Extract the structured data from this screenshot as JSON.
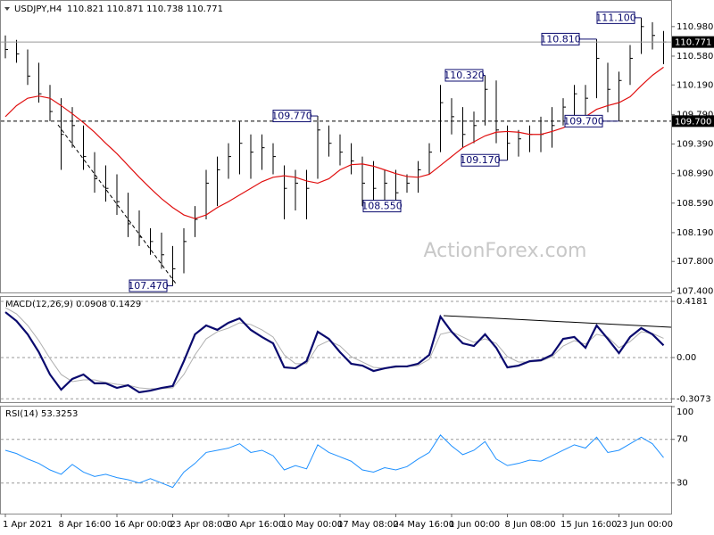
{
  "chart_data": [
    {
      "type": "hlc",
      "title": "USDJPY,H4",
      "subtitle": "110.821 110.871 110.738 110.771",
      "watermark": "ActionForex.com",
      "categories": [
        "1 Apr 2021",
        null,
        null,
        null,
        null,
        "8 Apr 16:00",
        null,
        null,
        null,
        null,
        "16 Apr 00:00",
        null,
        null,
        null,
        null,
        "23 Apr 08:00",
        null,
        null,
        null,
        null,
        "30 Apr 16:00",
        null,
        null,
        null,
        null,
        "10 May 00:00",
        null,
        null,
        null,
        null,
        "17 May 08:00",
        null,
        null,
        null,
        null,
        "24 May 16:00",
        null,
        null,
        null,
        null,
        "1 Jun 00:00",
        null,
        null,
        null,
        null,
        "8 Jun 08:00",
        null,
        null,
        null,
        null,
        "15 Jun 16:00",
        null,
        null,
        null,
        null,
        "23 Jun 00:00",
        null,
        null,
        null,
        null
      ],
      "high": [
        110.86,
        110.8,
        110.67,
        110.49,
        110.19,
        110.01,
        109.89,
        109.64,
        109.28,
        109.1,
        108.98,
        108.73,
        108.49,
        108.25,
        108.19,
        108.01,
        108.25,
        108.55,
        109.04,
        109.22,
        109.4,
        109.7,
        109.52,
        109.52,
        109.4,
        109.1,
        109.04,
        109.04,
        109.77,
        109.64,
        109.52,
        109.4,
        109.22,
        109.16,
        109.04,
        109.04,
        108.98,
        109.16,
        109.4,
        110.19,
        110.01,
        109.89,
        109.83,
        110.32,
        110.25,
        109.64,
        109.58,
        109.64,
        109.76,
        109.89,
        110.01,
        110.19,
        110.19,
        110.81,
        110.49,
        110.37,
        110.73,
        111.1,
        111.04,
        110.92
      ],
      "low": [
        110.55,
        110.49,
        110.19,
        109.95,
        109.7,
        109.04,
        109.34,
        109.04,
        108.73,
        108.61,
        108.43,
        108.13,
        108.01,
        107.89,
        107.7,
        107.47,
        107.64,
        108.13,
        108.37,
        108.55,
        108.92,
        108.98,
        108.92,
        109.04,
        108.98,
        108.37,
        108.49,
        108.37,
        108.92,
        109.22,
        109.1,
        108.98,
        108.55,
        108.61,
        108.61,
        108.61,
        108.73,
        108.73,
        108.98,
        109.28,
        109.52,
        109.34,
        109.4,
        109.64,
        109.4,
        109.17,
        109.22,
        109.28,
        109.28,
        109.34,
        109.64,
        109.76,
        109.76,
        110.01,
        109.82,
        109.7,
        110.19,
        110.61,
        110.67,
        110.47
      ],
      "close": [
        110.67,
        110.61,
        110.31,
        110.07,
        109.83,
        109.52,
        109.64,
        109.22,
        108.92,
        108.79,
        108.61,
        108.31,
        108.13,
        108.07,
        107.89,
        107.7,
        108.07,
        108.37,
        108.86,
        109.04,
        109.22,
        109.4,
        109.28,
        109.34,
        109.22,
        108.79,
        108.86,
        108.79,
        109.58,
        109.4,
        109.28,
        109.16,
        108.86,
        108.79,
        108.86,
        108.73,
        108.86,
        109.04,
        109.28,
        109.95,
        109.76,
        109.52,
        109.64,
        110.13,
        109.58,
        109.4,
        109.46,
        109.52,
        109.52,
        109.64,
        109.89,
        110.07,
        110.01,
        110.55,
        110.13,
        110.25,
        110.55,
        110.98,
        110.86,
        110.771
      ],
      "color": "#000000",
      "ma": {
        "color": "#e01010",
        "values": [
          109.76,
          109.91,
          110.01,
          110.04,
          110.01,
          109.91,
          109.8,
          109.68,
          109.55,
          109.4,
          109.26,
          109.1,
          108.94,
          108.79,
          108.65,
          108.53,
          108.43,
          108.38,
          108.43,
          108.53,
          108.61,
          108.7,
          108.79,
          108.88,
          108.94,
          108.96,
          108.94,
          108.89,
          108.86,
          108.92,
          109.04,
          109.11,
          109.12,
          109.09,
          109.04,
          108.99,
          108.95,
          108.94,
          108.98,
          109.1,
          109.22,
          109.34,
          109.42,
          109.5,
          109.55,
          109.56,
          109.55,
          109.52,
          109.52,
          109.56,
          109.61,
          109.68,
          109.76,
          109.86,
          109.91,
          109.95,
          110.03,
          110.18,
          110.32,
          110.43
        ]
      },
      "current_price": {
        "value": 110.771,
        "label": "110.771"
      },
      "level": {
        "value": 109.7,
        "label": "109.700"
      },
      "annotations": [
        {
          "value": 111.1,
          "label": "111.100"
        },
        {
          "value": 110.81,
          "label": "110.810"
        },
        {
          "value": 110.32,
          "label": "110.320"
        },
        {
          "value": 109.77,
          "label": "109.770"
        },
        {
          "value": 109.7,
          "label": "109.700"
        },
        {
          "value": 109.17,
          "label": "109.170"
        },
        {
          "value": 108.55,
          "label": "108.550"
        },
        {
          "value": 107.47,
          "label": "107.470"
        }
      ],
      "ylim": [
        107.38,
        111.34
      ],
      "yticks": [
        {
          "value": 107.4,
          "label": "107.400"
        },
        {
          "value": 107.8,
          "label": "107.800"
        },
        {
          "value": 108.19,
          "label": "108.190"
        },
        {
          "value": 108.59,
          "label": "108.590"
        },
        {
          "value": 108.99,
          "label": "108.990"
        },
        {
          "value": 109.39,
          "label": "109.390"
        },
        {
          "value": 109.79,
          "label": "109.790"
        },
        {
          "value": 110.19,
          "label": "110.190"
        },
        {
          "value": 110.58,
          "label": "110.580"
        },
        {
          "value": 110.98,
          "label": "110.980"
        }
      ]
    },
    {
      "type": "macd",
      "title": "MACD(12,26,9) 0.0908 0.1429",
      "macd": {
        "color": "#0a0a6e",
        "values": [
          0.338,
          0.272,
          0.173,
          0.04,
          -0.126,
          -0.239,
          -0.159,
          -0.126,
          -0.192,
          -0.192,
          -0.226,
          -0.206,
          -0.259,
          -0.246,
          -0.226,
          -0.212,
          -0.027,
          0.173,
          0.239,
          0.206,
          0.259,
          0.292,
          0.206,
          0.153,
          0.106,
          -0.073,
          -0.08,
          -0.027,
          0.192,
          0.139,
          0.04,
          -0.046,
          -0.06,
          -0.1,
          -0.08,
          -0.066,
          -0.066,
          -0.046,
          0.02,
          0.305,
          0.192,
          0.106,
          0.086,
          0.173,
          0.073,
          -0.073,
          -0.06,
          -0.027,
          -0.02,
          0.02,
          0.139,
          0.153,
          0.073,
          0.239,
          0.139,
          0.033,
          0.153,
          0.219,
          0.173,
          0.0908
        ]
      },
      "signal": {
        "color": "#b0b0b0",
        "values": [
          0.372,
          0.325,
          0.239,
          0.126,
          -0.007,
          -0.126,
          -0.179,
          -0.166,
          -0.166,
          -0.186,
          -0.199,
          -0.206,
          -0.226,
          -0.232,
          -0.232,
          -0.226,
          -0.126,
          0.02,
          0.139,
          0.192,
          0.219,
          0.259,
          0.246,
          0.206,
          0.153,
          0.02,
          -0.046,
          -0.046,
          0.086,
          0.126,
          0.086,
          0.007,
          -0.033,
          -0.073,
          -0.08,
          -0.073,
          -0.066,
          -0.06,
          -0.013,
          0.173,
          0.192,
          0.153,
          0.113,
          0.139,
          0.106,
          0.007,
          -0.033,
          -0.033,
          -0.027,
          0.007,
          0.086,
          0.126,
          0.1,
          0.173,
          0.153,
          0.073,
          0.119,
          0.192,
          0.179,
          0.1429
        ]
      },
      "ylim": [
        -0.332,
        0.458
      ],
      "yticks": [
        0.4181,
        {
          "value": 0,
          "label": "0.00"
        },
        -0.3073
      ]
    },
    {
      "type": "rsi",
      "title": "RSI(14) 53.3253",
      "color": "#1e90ff",
      "values": [
        60,
        57,
        52,
        48,
        42,
        38,
        47,
        40,
        36,
        38,
        35,
        33,
        30,
        34,
        30,
        26,
        40,
        48,
        58,
        60,
        62,
        66,
        58,
        60,
        55,
        42,
        46,
        43,
        65,
        58,
        54,
        50,
        42,
        40,
        44,
        42,
        45,
        52,
        58,
        74,
        64,
        56,
        60,
        68,
        52,
        46,
        48,
        51,
        50,
        55,
        60,
        65,
        62,
        72,
        58,
        60,
        66,
        72,
        66,
        53.3253
      ],
      "ylim": [
        2,
        100
      ],
      "yticks": [
        30,
        70,
        100
      ]
    }
  ]
}
